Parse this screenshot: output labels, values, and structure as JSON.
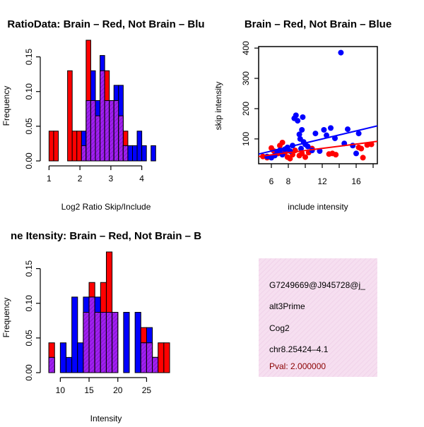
{
  "colors": {
    "red": "#ff0000",
    "blue": "#0000ff",
    "overlap": "#a020f0",
    "hatch": "#9933cc",
    "info_bg": "#f6dff0",
    "pval": "#8b0000"
  },
  "chart_data": [
    {
      "type": "bar",
      "title": "RatioData: Brain – Red, Not Brain – Blu",
      "xlabel": "Log2 Ratio Skip/Include",
      "ylabel": "Frequency",
      "xlim": [
        0.9,
        4.9
      ],
      "ylim": [
        0,
        0.175
      ],
      "xticks": [
        1,
        2,
        3,
        4
      ],
      "yticks": [
        0.0,
        0.05,
        0.1,
        0.15
      ],
      "ytick_labels": [
        "0.00",
        "0.05",
        "0.10",
        "0.15"
      ],
      "bin_width": 0.15,
      "series": [
        {
          "name": "Brain",
          "color": "red",
          "bins": [
            [
              1.0,
              0.043
            ],
            [
              1.15,
              0.043
            ],
            [
              1.6,
              0.13
            ],
            [
              1.75,
              0.043
            ],
            [
              1.9,
              0.043
            ],
            [
              2.05,
              0.022
            ],
            [
              2.2,
              0.174
            ],
            [
              2.35,
              0.087
            ],
            [
              2.5,
              0.065
            ],
            [
              2.65,
              0.13
            ],
            [
              2.8,
              0.13
            ],
            [
              2.95,
              0.087
            ],
            [
              3.1,
              0.087
            ],
            [
              3.25,
              0.065
            ],
            [
              3.4,
              0.043
            ]
          ]
        },
        {
          "name": "Not Brain",
          "color": "blue",
          "bins": [
            [
              2.05,
              0.043
            ],
            [
              2.2,
              0.087
            ],
            [
              2.35,
              0.13
            ],
            [
              2.5,
              0.087
            ],
            [
              2.65,
              0.152
            ],
            [
              2.8,
              0.087
            ],
            [
              2.95,
              0.087
            ],
            [
              3.1,
              0.109
            ],
            [
              3.25,
              0.109
            ],
            [
              3.4,
              0.022
            ],
            [
              3.55,
              0.022
            ],
            [
              3.7,
              0.022
            ],
            [
              3.85,
              0.043
            ],
            [
              4.0,
              0.022
            ],
            [
              4.3,
              0.022
            ]
          ]
        }
      ]
    },
    {
      "type": "scatter",
      "title": "Brain – Red, Not Brain – Blue",
      "xlabel": "include intensity",
      "ylabel": "skip intensity",
      "xlim": [
        4.5,
        18.5
      ],
      "ylim": [
        18,
        405
      ],
      "xticks": [
        6,
        8,
        12,
        16
      ],
      "xticks_minor": [
        10,
        14,
        18
      ],
      "yticks": [
        100,
        200,
        300,
        400
      ],
      "series": [
        {
          "name": "Brain",
          "color": "red",
          "points": [
            [
              5.0,
              42
            ],
            [
              5.5,
              38
            ],
            [
              6.0,
              70
            ],
            [
              6.3,
              60
            ],
            [
              6.8,
              52
            ],
            [
              7.0,
              78
            ],
            [
              7.3,
              88
            ],
            [
              7.6,
              55
            ],
            [
              7.9,
              40
            ],
            [
              8.2,
              35
            ],
            [
              8.5,
              48
            ],
            [
              8.8,
              62
            ],
            [
              9.3,
              45
            ],
            [
              9.6,
              52
            ],
            [
              10.0,
              40
            ],
            [
              10.4,
              55
            ],
            [
              10.8,
              68
            ],
            [
              12.8,
              50
            ],
            [
              13.2,
              52
            ],
            [
              13.6,
              48
            ],
            [
              16.3,
              72
            ],
            [
              16.6,
              68
            ],
            [
              16.8,
              38
            ],
            [
              17.3,
              80
            ],
            [
              17.8,
              82
            ]
          ],
          "trend": [
            [
              4.5,
              42
            ],
            [
              18.5,
              92
            ]
          ]
        },
        {
          "name": "Not Brain",
          "color": "blue",
          "points": [
            [
              5.5,
              42
            ],
            [
              6.0,
              38
            ],
            [
              6.4,
              45
            ],
            [
              6.7,
              58
            ],
            [
              7.0,
              62
            ],
            [
              7.3,
              48
            ],
            [
              7.6,
              66
            ],
            [
              7.9,
              72
            ],
            [
              8.2,
              60
            ],
            [
              8.5,
              78
            ],
            [
              8.7,
              168
            ],
            [
              8.9,
              178
            ],
            [
              9.1,
              160
            ],
            [
              9.3,
              115
            ],
            [
              9.4,
              100
            ],
            [
              9.5,
              68
            ],
            [
              9.6,
              130
            ],
            [
              9.7,
              172
            ],
            [
              9.8,
              90
            ],
            [
              10.0,
              82
            ],
            [
              10.3,
              75
            ],
            [
              10.8,
              62
            ],
            [
              11.2,
              118
            ],
            [
              11.7,
              60
            ],
            [
              12.2,
              130
            ],
            [
              12.5,
              112
            ],
            [
              13.0,
              136
            ],
            [
              13.5,
              102
            ],
            [
              14.2,
              385
            ],
            [
              14.6,
              85
            ],
            [
              15.0,
              132
            ],
            [
              15.6,
              78
            ],
            [
              16.0,
              52
            ],
            [
              16.3,
              118
            ]
          ],
          "trend": [
            [
              4.5,
              50
            ],
            [
              18.5,
              143
            ]
          ]
        }
      ]
    },
    {
      "type": "bar",
      "title": "ne Itensity: Brain – Red, Not Brain – B",
      "xlabel": "Intensity",
      "ylabel": "Frequency",
      "xlim": [
        7.5,
        29
      ],
      "ylim": [
        0,
        0.175
      ],
      "xticks": [
        10,
        15,
        20,
        25
      ],
      "yticks": [
        0.0,
        0.05,
        0.1,
        0.15
      ],
      "ytick_labels": [
        "0.00",
        "0.05",
        "0.10",
        "0.15"
      ],
      "bin_width": 1,
      "series": [
        {
          "name": "Brain",
          "color": "red",
          "bins": [
            [
              8,
              0.043
            ],
            [
              14,
              0.087
            ],
            [
              15,
              0.13
            ],
            [
              16,
              0.087
            ],
            [
              17,
              0.13
            ],
            [
              18,
              0.174
            ],
            [
              19,
              0.087
            ],
            [
              24,
              0.065
            ],
            [
              25,
              0.043
            ],
            [
              26,
              0.022
            ],
            [
              27,
              0.043
            ],
            [
              28,
              0.043
            ]
          ]
        },
        {
          "name": "Not Brain",
          "color": "blue",
          "bins": [
            [
              8,
              0.022
            ],
            [
              10,
              0.043
            ],
            [
              11,
              0.022
            ],
            [
              12,
              0.109
            ],
            [
              13,
              0.043
            ],
            [
              14,
              0.109
            ],
            [
              15,
              0.109
            ],
            [
              16,
              0.109
            ],
            [
              17,
              0.087
            ],
            [
              18,
              0.087
            ],
            [
              19,
              0.087
            ],
            [
              21,
              0.087
            ],
            [
              23,
              0.087
            ],
            [
              24,
              0.043
            ],
            [
              25,
              0.065
            ],
            [
              26,
              0.022
            ]
          ]
        }
      ]
    }
  ],
  "info_panel": {
    "id": "G7249669@J945728@j_",
    "event_type": "alt3Prime",
    "gene": "Cog2",
    "location": "chr8.25424–4.1",
    "pval": "Pval: 2.000000"
  }
}
